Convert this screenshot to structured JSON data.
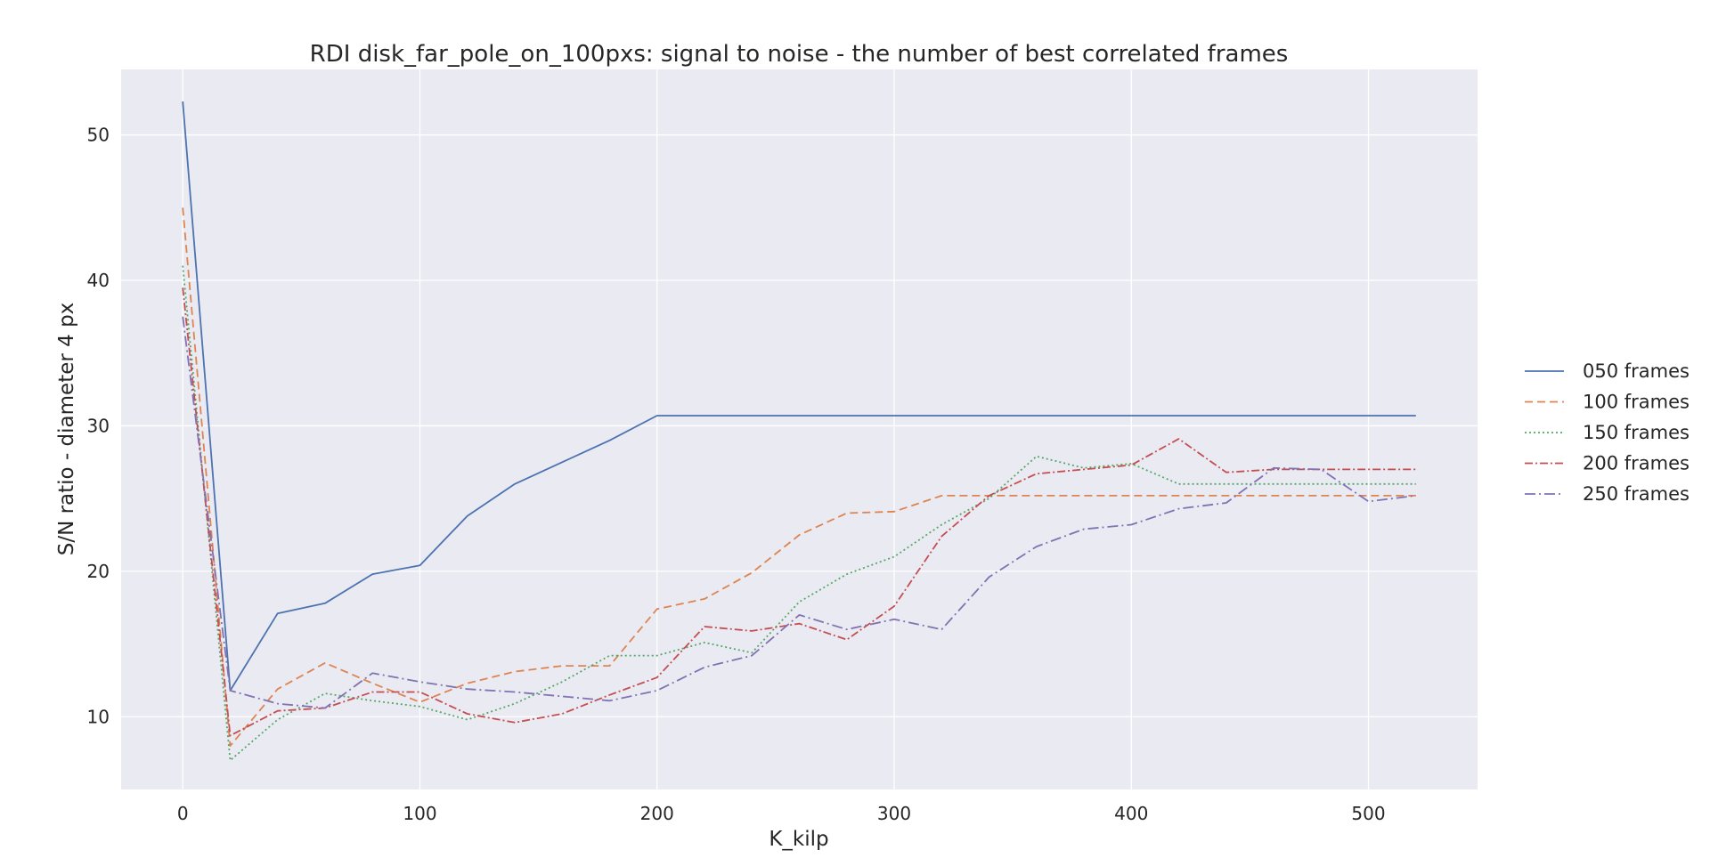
{
  "chart_data": {
    "type": "line",
    "title": "RDI disk_far_pole_on_100pxs: signal to noise - the number of best correlated frames",
    "xlabel": "K_kilp",
    "ylabel": "S/N ratio - diameter 4 px",
    "xlim": [
      -26,
      546
    ],
    "ylim": [
      5,
      54.5
    ],
    "xticks": [
      0,
      100,
      200,
      300,
      400,
      500
    ],
    "yticks": [
      10,
      20,
      30,
      40,
      50
    ],
    "grid": true,
    "legend_position": "right-outside",
    "x": [
      0,
      20,
      40,
      60,
      80,
      100,
      120,
      140,
      160,
      180,
      200,
      220,
      240,
      260,
      280,
      300,
      320,
      340,
      360,
      380,
      400,
      420,
      440,
      460,
      480,
      500,
      520
    ],
    "series": [
      {
        "name": "050 frames",
        "color": "#4c72b0",
        "dash": "",
        "values": [
          52.3,
          11.8,
          17.1,
          17.8,
          19.8,
          20.4,
          23.8,
          26.0,
          27.5,
          29.0,
          30.7,
          30.7,
          30.7,
          30.7,
          30.7,
          30.7,
          30.7,
          30.7,
          30.7,
          30.7,
          30.7,
          30.7,
          30.7,
          30.7,
          30.7,
          30.7,
          30.7
        ]
      },
      {
        "name": "100 frames",
        "color": "#dd8452",
        "dash": "9,5",
        "values": [
          45.0,
          8.0,
          11.9,
          13.7,
          12.3,
          11.0,
          12.3,
          13.1,
          13.5,
          13.5,
          17.4,
          18.1,
          19.9,
          22.5,
          24.0,
          24.1,
          25.2,
          25.2,
          25.2,
          25.2,
          25.2,
          25.2,
          25.2,
          25.2,
          25.2,
          25.2,
          25.2
        ]
      },
      {
        "name": "150 frames",
        "color": "#55a868",
        "dash": "2,3",
        "values": [
          41.0,
          7.0,
          9.8,
          11.6,
          11.1,
          10.7,
          9.8,
          10.9,
          12.4,
          14.2,
          14.2,
          15.1,
          14.4,
          17.9,
          19.8,
          21.0,
          23.2,
          25.0,
          27.9,
          27.1,
          27.4,
          26.0,
          26.0,
          26.0,
          26.0,
          26.0,
          26.0
        ]
      },
      {
        "name": "200 frames",
        "color": "#c44e52",
        "dash": "9,3,2,3",
        "values": [
          39.5,
          8.7,
          10.4,
          10.6,
          11.7,
          11.7,
          10.2,
          9.6,
          10.2,
          11.5,
          12.7,
          16.2,
          15.9,
          16.4,
          15.3,
          17.6,
          22.4,
          25.2,
          26.7,
          27.0,
          27.3,
          29.1,
          26.8,
          27.0,
          27.0,
          27.0,
          27.0
        ]
      },
      {
        "name": "250 frames",
        "color": "#8172b2",
        "dash": "12,4,2,4",
        "values": [
          37.5,
          11.8,
          10.9,
          10.6,
          13.0,
          12.4,
          11.9,
          11.7,
          11.4,
          11.1,
          11.8,
          13.4,
          14.2,
          17.0,
          16.0,
          16.7,
          16.0,
          19.6,
          21.7,
          22.9,
          23.2,
          24.3,
          24.7,
          27.1,
          27.0,
          24.8,
          25.2
        ]
      }
    ]
  }
}
